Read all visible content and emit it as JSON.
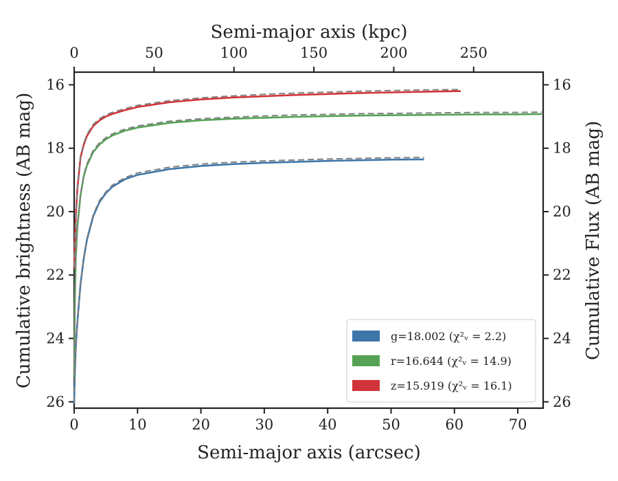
{
  "chart_data": {
    "type": "line",
    "xlabel": "Semi-major axis (arcsec)",
    "ylabel": "Cumulative brightness (AB mag)",
    "top_xlabel": "Semi-major axis (kpc)",
    "right_ylabel": "Cumulative Flux (AB mag)",
    "xlim": [
      0,
      74
    ],
    "ylim": [
      26.2,
      15.6
    ],
    "top_xlim": [
      0,
      293.5
    ],
    "y_inverted": true,
    "x_ticks": [
      0,
      10,
      20,
      30,
      40,
      50,
      60,
      70
    ],
    "y_ticks": [
      16,
      18,
      20,
      22,
      24,
      26
    ],
    "top_x_ticks": [
      0,
      50,
      100,
      150,
      200,
      250
    ],
    "grid": false,
    "legend_position": "lower-right",
    "legend_entries": [
      {
        "band": "g",
        "label": "g=18.002 (χ²ᵥ = 2.2)",
        "color": "#3f76a8"
      },
      {
        "band": "r",
        "label": "r=16.644 (χ²ᵥ = 14.9)",
        "color": "#56a356"
      },
      {
        "band": "z",
        "label": "z=15.919 (χ²ᵥ = 16.1)",
        "color": "#d1343a"
      }
    ],
    "series": [
      {
        "band": "g",
        "color": "#3f76a8",
        "x": [
          0.0,
          0.1,
          0.25,
          0.5,
          1,
          1.5,
          2,
          3,
          4,
          5,
          6,
          8,
          10,
          15,
          20,
          25,
          30,
          35,
          40,
          45,
          50,
          55.2
        ],
        "y": [
          26.05,
          25.2,
          24.3,
          23.5,
          22.3,
          21.5,
          20.9,
          20.15,
          19.7,
          19.42,
          19.22,
          18.98,
          18.84,
          18.66,
          18.56,
          18.5,
          18.46,
          18.43,
          18.4,
          18.38,
          18.36,
          18.35
        ]
      },
      {
        "band": "r",
        "color": "#56a356",
        "x": [
          0.0,
          0.1,
          0.25,
          0.5,
          1,
          1.5,
          2,
          3,
          4,
          5,
          6,
          8,
          10,
          15,
          20,
          25,
          30,
          35,
          40,
          45,
          50,
          55,
          60,
          65,
          70,
          73.8
        ],
        "y": [
          25.2,
          23.0,
          21.5,
          20.5,
          19.5,
          18.9,
          18.55,
          18.12,
          17.88,
          17.72,
          17.6,
          17.45,
          17.35,
          17.2,
          17.12,
          17.07,
          17.04,
          17.01,
          16.99,
          16.97,
          16.96,
          16.95,
          16.94,
          16.93,
          16.93,
          16.92
        ]
      },
      {
        "band": "z",
        "color": "#d1343a",
        "x": [
          0.0,
          0.1,
          0.25,
          0.5,
          1,
          1.5,
          2,
          3,
          4,
          5,
          6,
          8,
          10,
          15,
          20,
          25,
          30,
          35,
          40,
          45,
          50,
          55,
          60,
          61
        ],
        "y": [
          21.8,
          21.0,
          20.2,
          19.3,
          18.3,
          17.9,
          17.62,
          17.3,
          17.12,
          17.0,
          16.92,
          16.8,
          16.7,
          16.55,
          16.46,
          16.4,
          16.36,
          16.32,
          16.29,
          16.26,
          16.24,
          16.22,
          16.2,
          16.2
        ]
      }
    ],
    "model_curves": [
      {
        "band": "g",
        "style": "dashed",
        "color": "#808080",
        "x": [
          0.0,
          0.1,
          0.25,
          0.5,
          1,
          1.5,
          2,
          3,
          4,
          5,
          6,
          8,
          10,
          15,
          20,
          25,
          30,
          35,
          40,
          45,
          50,
          55.2
        ],
        "y": [
          26.0,
          25.15,
          24.25,
          23.45,
          22.25,
          21.45,
          20.85,
          20.1,
          19.65,
          19.38,
          19.17,
          18.93,
          18.78,
          18.6,
          18.5,
          18.44,
          18.4,
          18.37,
          18.34,
          18.32,
          18.3,
          18.29
        ]
      },
      {
        "band": "r",
        "style": "dashed",
        "color": "#808080",
        "x": [
          0.0,
          0.1,
          0.25,
          0.5,
          1,
          1.5,
          2,
          3,
          4,
          5,
          6,
          8,
          10,
          15,
          20,
          25,
          30,
          35,
          40,
          45,
          50,
          55,
          60,
          65,
          70,
          73.8
        ],
        "y": [
          25.15,
          22.95,
          21.45,
          20.45,
          19.45,
          18.85,
          18.5,
          18.07,
          17.83,
          17.67,
          17.55,
          17.4,
          17.3,
          17.15,
          17.07,
          17.02,
          16.98,
          16.95,
          16.93,
          16.91,
          16.9,
          16.89,
          16.88,
          16.87,
          16.87,
          16.86
        ]
      },
      {
        "band": "z",
        "style": "dashed",
        "color": "#808080",
        "x": [
          0.0,
          0.1,
          0.25,
          0.5,
          1,
          1.5,
          2,
          3,
          4,
          5,
          6,
          8,
          10,
          15,
          20,
          25,
          30,
          35,
          40,
          45,
          50,
          55,
          60,
          61
        ],
        "y": [
          21.75,
          20.95,
          20.15,
          19.25,
          18.25,
          17.85,
          17.57,
          17.25,
          17.07,
          16.95,
          16.87,
          16.75,
          16.65,
          16.5,
          16.41,
          16.35,
          16.3,
          16.26,
          16.23,
          16.2,
          16.18,
          16.16,
          16.15,
          16.15
        ]
      }
    ]
  }
}
